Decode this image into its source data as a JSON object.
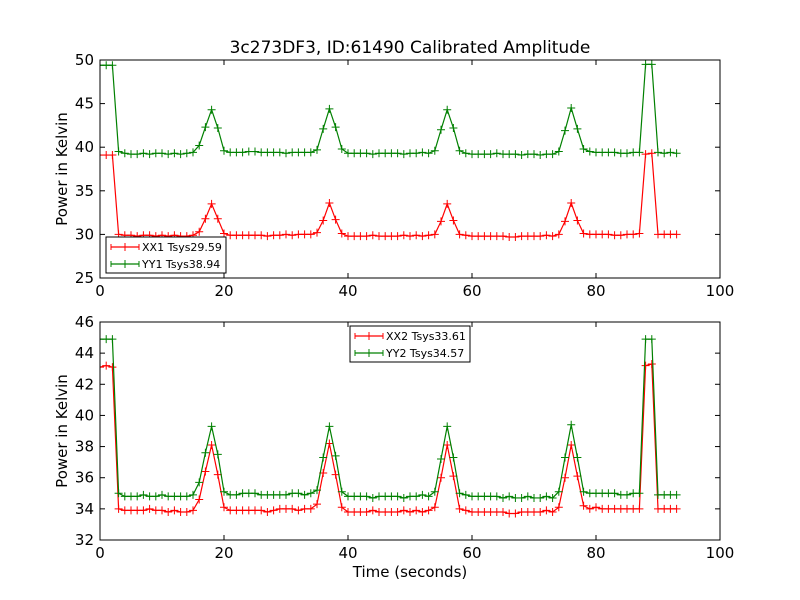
{
  "figure": {
    "title": "3c273DF3, ID:61490 Calibrated Amplitude"
  },
  "chart_data": [
    {
      "type": "line",
      "title": "3c273DF3, ID:61490 Calibrated Amplitude",
      "xlabel": "",
      "ylabel": "Power in Kelvin",
      "xlim": [
        0,
        100
      ],
      "ylim": [
        25,
        50
      ],
      "xticks": [
        0,
        20,
        40,
        60,
        80,
        100
      ],
      "yticks": [
        25,
        30,
        35,
        40,
        45,
        50
      ],
      "marker": "+",
      "legend_position": "lower-left",
      "base_x": [
        0,
        1,
        2,
        3,
        4,
        5,
        6,
        7,
        8,
        9,
        10,
        11,
        12,
        13,
        14,
        15,
        16,
        17,
        18,
        19,
        20,
        21,
        22,
        23,
        24,
        25,
        26,
        27,
        28,
        29,
        30,
        31,
        32,
        33,
        34,
        35,
        36,
        37,
        38,
        39,
        40,
        41,
        42,
        43,
        44,
        45,
        46,
        47,
        48,
        49,
        50,
        51,
        52,
        53,
        54,
        55,
        56,
        57,
        58,
        59,
        60,
        61,
        62,
        63,
        64,
        65,
        66,
        67,
        68,
        69,
        70,
        71,
        72,
        73,
        74,
        75,
        76,
        77,
        78,
        79,
        80,
        81,
        82,
        83,
        84,
        85,
        86,
        87,
        88,
        89,
        90,
        91,
        92,
        93
      ],
      "series": [
        {
          "name": "XX1 Tsys29.59",
          "color": "#ff0000",
          "y": [
            39.1,
            39.1,
            39.1,
            30.0,
            29.9,
            29.9,
            29.8,
            29.9,
            29.9,
            29.8,
            29.9,
            29.8,
            29.9,
            29.8,
            29.8,
            29.9,
            30.3,
            31.8,
            33.5,
            31.8,
            30.1,
            29.9,
            29.9,
            29.9,
            29.9,
            29.9,
            29.9,
            29.8,
            29.9,
            29.9,
            30.0,
            29.9,
            30.0,
            30.0,
            30.0,
            30.2,
            31.6,
            33.6,
            31.7,
            30.1,
            29.8,
            29.8,
            29.8,
            29.8,
            29.9,
            29.8,
            29.8,
            29.8,
            29.8,
            29.9,
            29.8,
            29.9,
            29.8,
            29.9,
            30.0,
            31.5,
            33.5,
            31.6,
            30.0,
            29.9,
            29.8,
            29.8,
            29.8,
            29.8,
            29.8,
            29.8,
            29.7,
            29.7,
            29.8,
            29.8,
            29.8,
            29.8,
            29.9,
            29.8,
            30.0,
            31.5,
            33.6,
            31.6,
            30.1,
            30.0,
            30.0,
            30.0,
            30.0,
            29.9,
            29.9,
            30.0,
            30.0,
            30.1,
            39.2,
            39.3,
            30.0,
            30.0,
            30.0,
            30.0
          ]
        },
        {
          "name": "YY1 Tsys38.94",
          "color": "#008000",
          "y": [
            49.4,
            49.4,
            49.4,
            39.5,
            39.3,
            39.2,
            39.2,
            39.3,
            39.2,
            39.3,
            39.3,
            39.2,
            39.3,
            39.2,
            39.3,
            39.4,
            40.2,
            42.3,
            44.3,
            42.2,
            39.6,
            39.4,
            39.4,
            39.4,
            39.5,
            39.5,
            39.4,
            39.4,
            39.4,
            39.4,
            39.3,
            39.4,
            39.4,
            39.4,
            39.4,
            39.7,
            42.1,
            44.4,
            42.3,
            39.8,
            39.3,
            39.3,
            39.3,
            39.3,
            39.2,
            39.3,
            39.3,
            39.3,
            39.3,
            39.2,
            39.3,
            39.3,
            39.4,
            39.3,
            39.6,
            42.0,
            44.3,
            42.2,
            39.6,
            39.3,
            39.2,
            39.2,
            39.2,
            39.2,
            39.3,
            39.2,
            39.2,
            39.2,
            39.1,
            39.2,
            39.2,
            39.1,
            39.2,
            39.2,
            39.5,
            41.9,
            44.5,
            42.1,
            39.8,
            39.5,
            39.4,
            39.4,
            39.4,
            39.4,
            39.3,
            39.3,
            39.4,
            39.4,
            49.5,
            49.5,
            39.4,
            39.3,
            39.4,
            39.3
          ]
        }
      ]
    },
    {
      "type": "line",
      "title": "",
      "xlabel": "Time (seconds)",
      "ylabel": "Power in Kelvin",
      "xlim": [
        0,
        100
      ],
      "ylim": [
        32,
        46
      ],
      "xticks": [
        0,
        20,
        40,
        60,
        80,
        100
      ],
      "yticks": [
        32,
        34,
        36,
        38,
        40,
        42,
        44,
        46
      ],
      "marker": "+",
      "legend_position": "upper-center",
      "base_x": [
        0,
        1,
        2,
        3,
        4,
        5,
        6,
        7,
        8,
        9,
        10,
        11,
        12,
        13,
        14,
        15,
        16,
        17,
        18,
        19,
        20,
        21,
        22,
        23,
        24,
        25,
        26,
        27,
        28,
        29,
        30,
        31,
        32,
        33,
        34,
        35,
        36,
        37,
        38,
        39,
        40,
        41,
        42,
        43,
        44,
        45,
        46,
        47,
        48,
        49,
        50,
        51,
        52,
        53,
        54,
        55,
        56,
        57,
        58,
        59,
        60,
        61,
        62,
        63,
        64,
        65,
        66,
        67,
        68,
        69,
        70,
        71,
        72,
        73,
        74,
        75,
        76,
        77,
        78,
        79,
        80,
        81,
        82,
        83,
        84,
        85,
        86,
        87,
        88,
        89,
        90,
        91,
        92,
        93
      ],
      "series": [
        {
          "name": "XX2 Tsys33.61",
          "color": "#ff0000",
          "y": [
            43.1,
            43.2,
            43.1,
            34.0,
            33.9,
            33.9,
            33.9,
            33.9,
            34.0,
            33.9,
            33.9,
            33.8,
            33.9,
            33.8,
            33.8,
            33.9,
            34.6,
            36.4,
            38.1,
            36.2,
            34.1,
            33.9,
            33.9,
            33.9,
            33.9,
            33.9,
            33.9,
            33.8,
            33.9,
            34.0,
            34.0,
            34.0,
            33.9,
            34.0,
            34.0,
            34.3,
            36.3,
            38.2,
            36.2,
            34.1,
            33.8,
            33.8,
            33.8,
            33.8,
            33.9,
            33.8,
            33.8,
            33.8,
            33.8,
            33.9,
            33.8,
            33.9,
            33.8,
            33.9,
            34.1,
            36.0,
            38.1,
            36.1,
            34.0,
            33.9,
            33.8,
            33.8,
            33.8,
            33.8,
            33.8,
            33.8,
            33.7,
            33.7,
            33.8,
            33.8,
            33.8,
            33.8,
            33.9,
            33.8,
            34.1,
            36.0,
            38.1,
            36.1,
            34.2,
            34.0,
            34.1,
            34.0,
            34.0,
            34.0,
            34.0,
            34.0,
            34.0,
            34.0,
            43.2,
            43.3,
            34.0,
            34.0,
            34.0,
            34.0
          ]
        },
        {
          "name": "YY2 Tsys34.57",
          "color": "#008000",
          "y": [
            44.9,
            44.9,
            44.9,
            35.0,
            34.8,
            34.8,
            34.8,
            34.9,
            34.8,
            34.8,
            34.9,
            34.8,
            34.8,
            34.8,
            34.8,
            34.9,
            35.7,
            37.6,
            39.3,
            37.5,
            35.1,
            34.9,
            34.9,
            35.0,
            35.0,
            35.0,
            34.9,
            34.9,
            34.9,
            34.9,
            34.9,
            35.0,
            35.0,
            34.9,
            35.0,
            35.2,
            37.3,
            39.3,
            37.4,
            35.1,
            34.8,
            34.8,
            34.8,
            34.8,
            34.7,
            34.8,
            34.8,
            34.8,
            34.8,
            34.7,
            34.8,
            34.8,
            34.9,
            34.8,
            35.1,
            37.2,
            39.3,
            37.3,
            35.0,
            34.9,
            34.8,
            34.8,
            34.8,
            34.8,
            34.8,
            34.7,
            34.8,
            34.7,
            34.7,
            34.8,
            34.7,
            34.7,
            34.8,
            34.7,
            35.1,
            37.3,
            39.4,
            37.3,
            35.1,
            35.0,
            35.0,
            35.0,
            35.0,
            35.0,
            34.9,
            34.9,
            35.0,
            35.0,
            44.9,
            44.9,
            34.9,
            34.9,
            34.9,
            34.9
          ]
        }
      ]
    }
  ]
}
